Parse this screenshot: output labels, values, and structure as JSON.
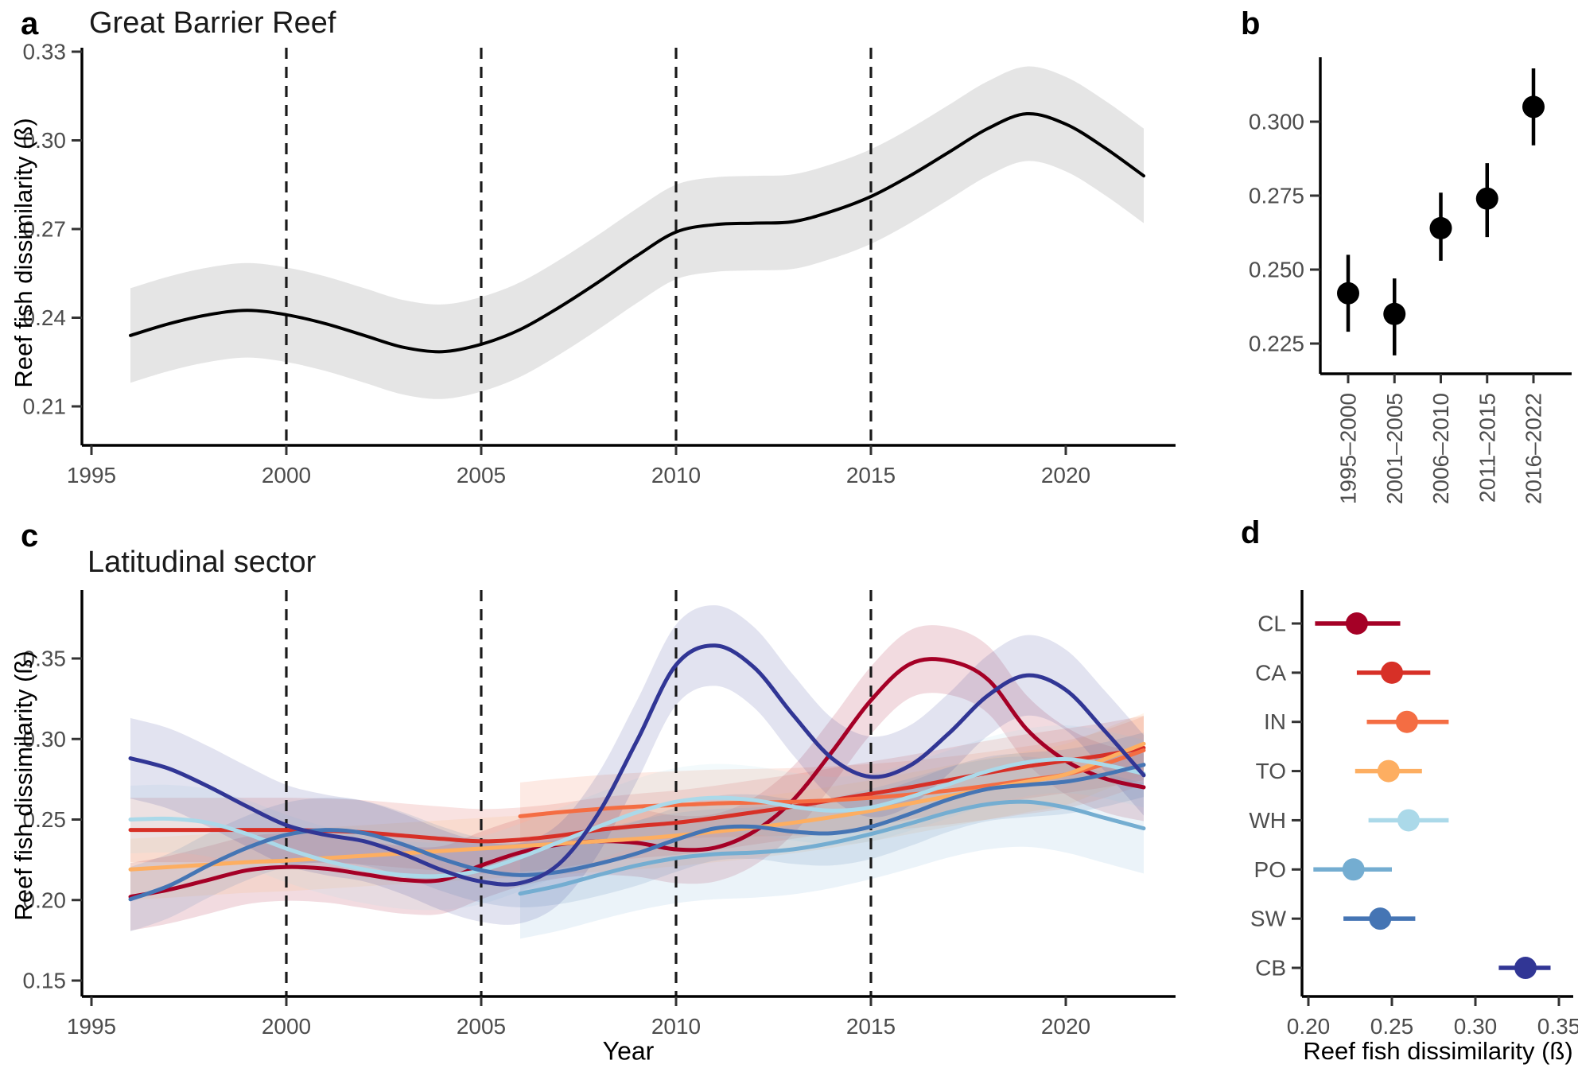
{
  "panels": {
    "a": {
      "letter": "a",
      "title": "Great Barrier Reef",
      "ylabel": "Reef fish dissimilarity (ß)"
    },
    "b": {
      "letter": "b"
    },
    "c": {
      "letter": "c",
      "title": "Latitudinal sector",
      "ylabel": "Reef fish dissimilarity (ß)",
      "xlabel": "Year"
    },
    "d": {
      "letter": "d",
      "xlabel": "Reef fish dissimilarity (ß)"
    }
  },
  "chart_data": [
    {
      "panel": "a",
      "type": "line",
      "title": "Great Barrier Reef",
      "ylabel": "Reef fish dissimilarity (ß)",
      "xlabel": "",
      "start_year": 1996,
      "values": [
        0.234,
        0.238,
        0.241,
        0.2425,
        0.241,
        0.238,
        0.234,
        0.23,
        0.2285,
        0.231,
        0.236,
        0.2435,
        0.252,
        0.261,
        0.269,
        0.2715,
        0.272,
        0.2725,
        0.276,
        0.281,
        0.288,
        0.296,
        0.304,
        0.309,
        0.3055,
        0.2975,
        0.288
      ],
      "ci_halfwidth": 0.016,
      "line_color": "#000000",
      "band_opacity": 0.1,
      "ylim": [
        0.197,
        0.334
      ],
      "y_ticks": [
        0.33,
        0.3,
        0.27,
        0.24,
        0.21
      ],
      "y_tick_labels": [
        "0.33",
        "0.30",
        "0.27",
        "0.24",
        "0.21"
      ],
      "x_ticks": [
        1995,
        2000,
        2005,
        2010,
        2015,
        2020
      ],
      "x_tick_labels": [
        "1995",
        "2000",
        "2005",
        "2010",
        "2015",
        "2020"
      ],
      "dashed_vlines": [
        2000,
        2005,
        2010,
        2015
      ],
      "grid": false,
      "legend": "none"
    },
    {
      "panel": "b",
      "type": "scatter",
      "categories": [
        "1995–2000",
        "2001–2005",
        "2006–2010",
        "2011–2015",
        "2016–2022"
      ],
      "values": [
        0.242,
        0.235,
        0.264,
        0.274,
        0.305
      ],
      "ci_low": [
        0.229,
        0.221,
        0.253,
        0.261,
        0.292
      ],
      "ci_high": [
        0.255,
        0.247,
        0.276,
        0.286,
        0.318
      ],
      "point_color": "#000000",
      "y_ticks": [
        0.3,
        0.275,
        0.25,
        0.225
      ],
      "y_tick_labels": [
        "0.300",
        "0.275",
        "0.250",
        "0.225"
      ],
      "ylim": [
        0.212,
        0.325
      ],
      "grid": false,
      "legend": "none"
    },
    {
      "panel": "c",
      "type": "line",
      "title": "Latitudinal sector",
      "ylabel": "Reef fish dissimilarity (ß)",
      "xlabel": "Year",
      "ylim": [
        0.143,
        0.392
      ],
      "y_ticks": [
        0.35,
        0.3,
        0.25,
        0.2,
        0.15
      ],
      "y_tick_labels": [
        "0.35",
        "0.30",
        "0.25",
        "0.20",
        "0.15"
      ],
      "x_ticks": [
        1995,
        2000,
        2005,
        2010,
        2015,
        2020
      ],
      "x_tick_labels": [
        "1995",
        "2000",
        "2005",
        "2010",
        "2015",
        "2020"
      ],
      "dashed_vlines": [
        2000,
        2005,
        2010,
        2015
      ],
      "grid": false,
      "legend": "none",
      "series": [
        {
          "name": "CL",
          "color": "#a50026",
          "start_year": 1996,
          "band": 0.021,
          "values": [
            0.202,
            0.2065,
            0.2125,
            0.2185,
            0.2205,
            0.2195,
            0.216,
            0.2125,
            0.2125,
            0.2215,
            0.2295,
            0.2345,
            0.2365,
            0.2355,
            0.2315,
            0.2325,
            0.2425,
            0.262,
            0.292,
            0.324,
            0.3465,
            0.3485,
            0.337,
            0.306,
            0.2865,
            0.2755,
            0.27
          ]
        },
        {
          "name": "CA",
          "color": "#d73027",
          "start_year": 1996,
          "band": 0.02,
          "values": [
            0.2435,
            0.2435,
            0.2435,
            0.2435,
            0.2435,
            0.243,
            0.242,
            0.24,
            0.238,
            0.2365,
            0.2375,
            0.24,
            0.2435,
            0.246,
            0.248,
            0.251,
            0.2545,
            0.258,
            0.262,
            0.266,
            0.27,
            0.2745,
            0.279,
            0.283,
            0.2865,
            0.29,
            0.2945
          ]
        },
        {
          "name": "IN",
          "color": "#f46d43",
          "start_year": 2006,
          "band": 0.021,
          "values": [
            0.252,
            0.2545,
            0.2565,
            0.258,
            0.259,
            0.26,
            0.2605,
            0.261,
            0.262,
            0.2635,
            0.2655,
            0.268,
            0.271,
            0.2745,
            0.278,
            0.2845,
            0.293
          ]
        },
        {
          "name": "TO",
          "color": "#fdae61",
          "start_year": 1996,
          "band": 0.019,
          "values": [
            0.219,
            0.2205,
            0.222,
            0.2235,
            0.2245,
            0.226,
            0.2275,
            0.229,
            0.2305,
            0.232,
            0.2335,
            0.235,
            0.2365,
            0.238,
            0.24,
            0.2425,
            0.245,
            0.248,
            0.2515,
            0.2555,
            0.26,
            0.2645,
            0.269,
            0.2735,
            0.278,
            0.2875,
            0.297
          ]
        },
        {
          "name": "WH",
          "color": "#abd9e9",
          "start_year": 1996,
          "band": 0.021,
          "values": [
            0.25,
            0.2505,
            0.248,
            0.241,
            0.232,
            0.2245,
            0.219,
            0.2155,
            0.215,
            0.2185,
            0.2265,
            0.236,
            0.2455,
            0.2545,
            0.261,
            0.2635,
            0.262,
            0.258,
            0.2555,
            0.2575,
            0.264,
            0.272,
            0.28,
            0.2855,
            0.2875,
            0.284,
            0.2785
          ]
        },
        {
          "name": "PO",
          "color": "#74add1",
          "start_year": 2006,
          "band": 0.028,
          "values": [
            0.204,
            0.209,
            0.2155,
            0.2215,
            0.226,
            0.2285,
            0.2295,
            0.2315,
            0.2355,
            0.241,
            0.2475,
            0.2545,
            0.2595,
            0.261,
            0.2575,
            0.251,
            0.2445
          ]
        },
        {
          "name": "SW",
          "color": "#4575b4",
          "start_year": 1996,
          "band": 0.02,
          "values": [
            0.2005,
            0.209,
            0.2215,
            0.2325,
            0.2405,
            0.2435,
            0.2415,
            0.2345,
            0.2255,
            0.2185,
            0.2155,
            0.2175,
            0.2225,
            0.229,
            0.2375,
            0.2445,
            0.2455,
            0.2425,
            0.2415,
            0.2455,
            0.2535,
            0.2625,
            0.269,
            0.2715,
            0.2735,
            0.278,
            0.284
          ]
        },
        {
          "name": "CB",
          "color": "#313695",
          "start_year": 1996,
          "band": 0.025,
          "values": [
            0.288,
            0.2815,
            0.2705,
            0.258,
            0.2465,
            0.2405,
            0.2365,
            0.2285,
            0.2185,
            0.2115,
            0.2105,
            0.2225,
            0.2535,
            0.299,
            0.346,
            0.358,
            0.3445,
            0.315,
            0.288,
            0.2765,
            0.2835,
            0.3035,
            0.327,
            0.3395,
            0.3305,
            0.305,
            0.2775
          ]
        }
      ]
    },
    {
      "panel": "d",
      "type": "scatter",
      "orientation": "horizontal",
      "xlabel": "Reef fish dissimilarity (ß)",
      "sectors": [
        "CL",
        "CA",
        "IN",
        "TO",
        "WH",
        "PO",
        "SW",
        "CB"
      ],
      "values": [
        0.229,
        0.25,
        0.259,
        0.248,
        0.26,
        0.227,
        0.243,
        0.33
      ],
      "ci_low": [
        0.204,
        0.229,
        0.235,
        0.228,
        0.236,
        0.203,
        0.221,
        0.314
      ],
      "ci_high": [
        0.255,
        0.273,
        0.284,
        0.268,
        0.284,
        0.25,
        0.264,
        0.345
      ],
      "colors": [
        "#a50026",
        "#d73027",
        "#f46d43",
        "#fdae61",
        "#abd9e9",
        "#74add1",
        "#4575b4",
        "#313695"
      ],
      "x_ticks": [
        0.2,
        0.25,
        0.3,
        0.35
      ],
      "x_tick_labels": [
        "0.20",
        "0.25",
        "0.30",
        "0.35"
      ],
      "xlim": [
        0.196,
        0.358
      ],
      "grid": false,
      "legend": "none"
    }
  ]
}
